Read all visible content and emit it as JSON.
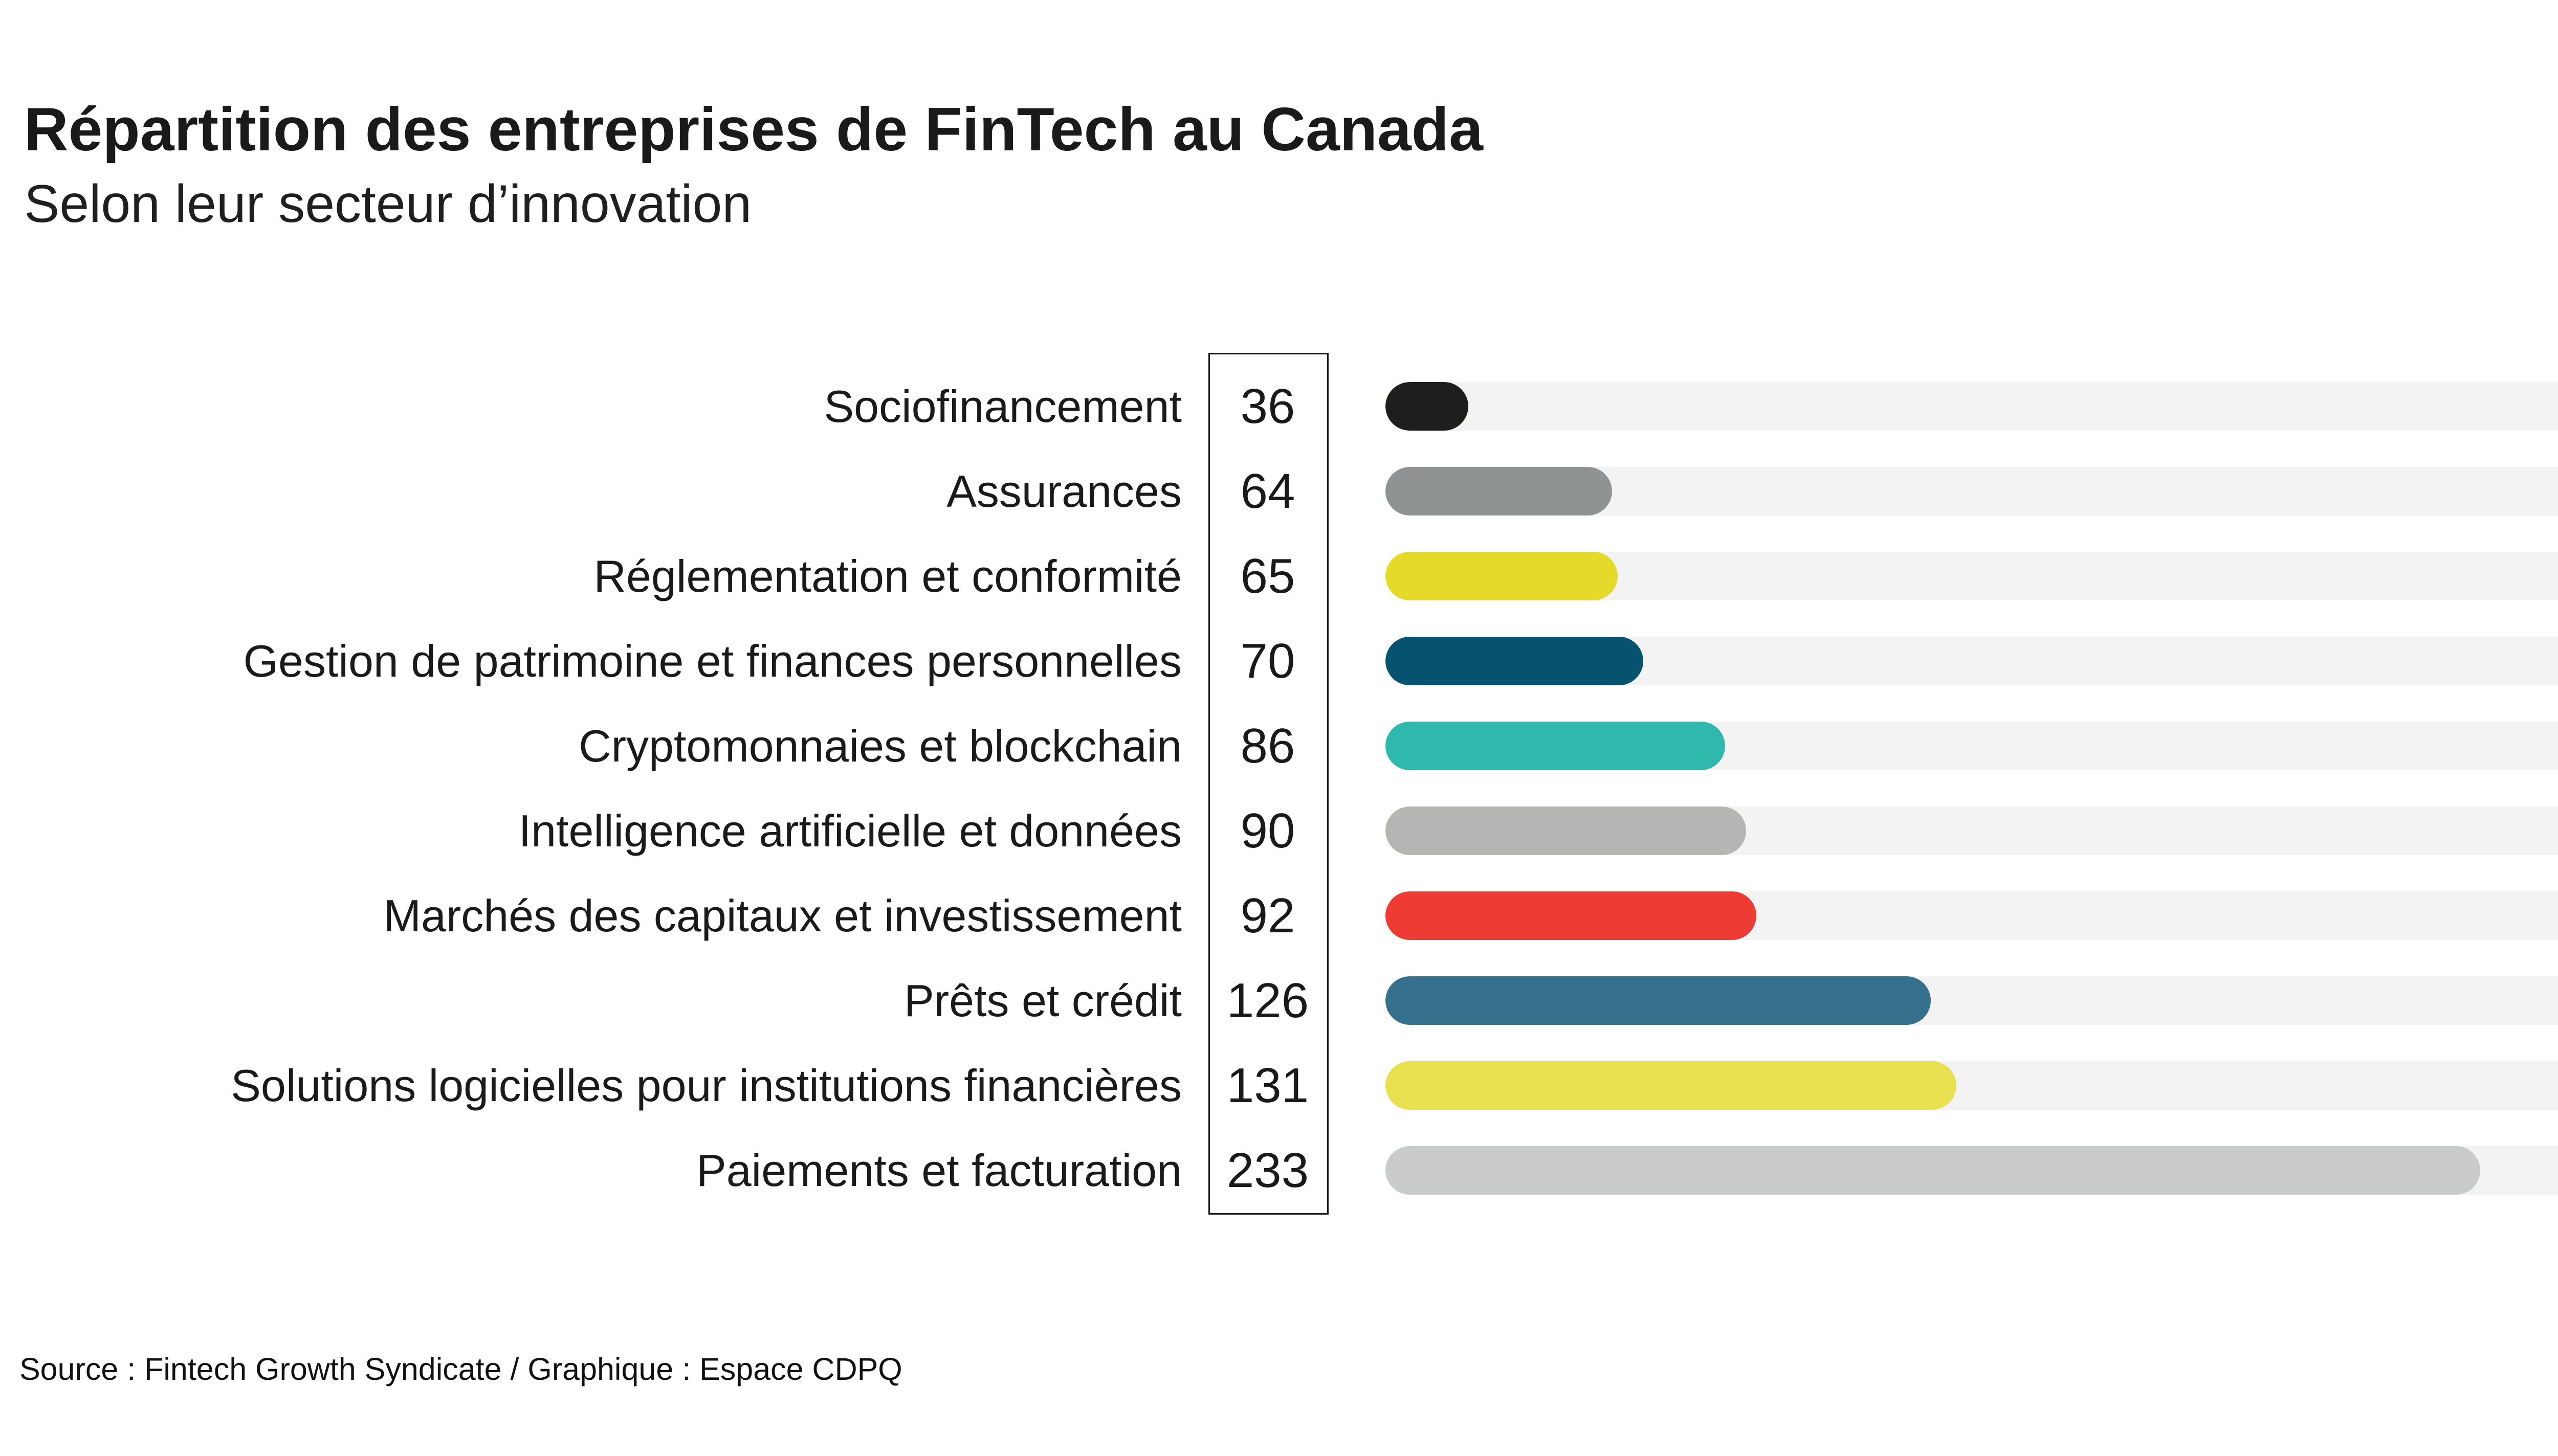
{
  "header": {
    "title": "Répartition des entreprises de FinTech au Canada",
    "subtitle": "Selon leur secteur d’innovation"
  },
  "footer": {
    "source": "Source : Fintech Growth Syndicate / Graphique : Espace CDPQ"
  },
  "colors": {
    "background": "#ffffff",
    "text": "#1a1a1a",
    "bar_track": "#f3f3f4",
    "value_box_border": "#1a1a1a"
  },
  "chart_data": {
    "type": "bar",
    "orientation": "horizontal",
    "title": "Répartition des entreprises de FinTech au Canada",
    "subtitle": "Selon leur secteur d’innovation",
    "xlabel": "",
    "ylabel": "",
    "grid": false,
    "legend": "none",
    "value_column_boxed": true,
    "categories": [
      "Sociofinancement",
      "Assurances",
      "Réglementation et conformité",
      "Gestion de patrimoine et finances personnelles",
      "Cryptomonnaies et blockchain",
      "Intelligence artificielle et données",
      "Marchés des capitaux et investissement",
      "Prêts et crédit",
      "Solutions logicielles pour institutions financières",
      "Paiements et facturation"
    ],
    "values": [
      36,
      64,
      65,
      70,
      86,
      90,
      92,
      126,
      131,
      233
    ],
    "bar_colors": [
      "#1e1e1c",
      "#8f9394",
      "#e5d929",
      "#065370",
      "#2fb9ac",
      "#b5b6b4",
      "#ee3c35",
      "#35708c",
      "#e9e04f",
      "#c9cccb"
    ]
  }
}
